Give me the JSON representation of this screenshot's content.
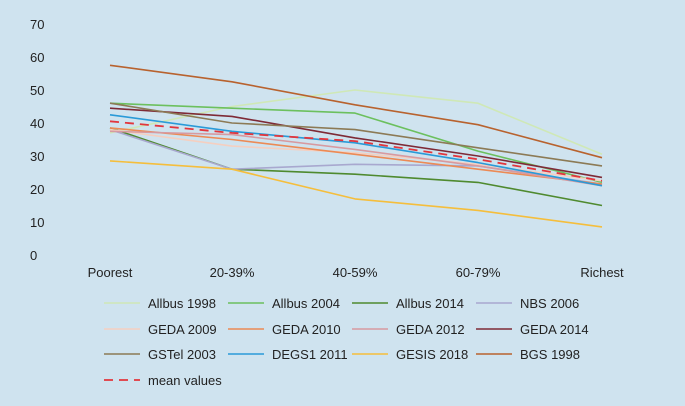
{
  "chart_data": {
    "type": "line",
    "title": "",
    "xlabel": "",
    "ylabel": "",
    "ylim": [
      0,
      70
    ],
    "yticks": [
      0,
      10,
      20,
      30,
      40,
      50,
      60,
      70
    ],
    "grid": false,
    "legend_position": "bottom",
    "categories": [
      "Poorest",
      "20-39%",
      "40-59%",
      "60-79%",
      "Richest"
    ],
    "series": [
      {
        "name": "Allbus 1998",
        "color": "#cfe8b6",
        "dash": false,
        "values": [
          37,
          45,
          50,
          46,
          30.5
        ]
      },
      {
        "name": "Allbus 2004",
        "color": "#6cc05e",
        "dash": false,
        "values": [
          46,
          44.5,
          43,
          31.5,
          22
        ]
      },
      {
        "name": "Allbus 2014",
        "color": "#4f8a2f",
        "dash": false,
        "values": [
          38.5,
          26,
          24.5,
          22,
          15
        ]
      },
      {
        "name": "NBS 2006",
        "color": "#a8a8cf",
        "dash": false,
        "values": [
          38,
          26,
          27.5,
          27,
          21.5
        ]
      },
      {
        "name": "GEDA 2009",
        "color": "#f5cfc0",
        "dash": false,
        "values": [
          38,
          33,
          31,
          27.5,
          22.5
        ]
      },
      {
        "name": "GEDA 2010",
        "color": "#ec8a55",
        "dash": false,
        "values": [
          38.5,
          35,
          30.5,
          26,
          21.5
        ]
      },
      {
        "name": "GEDA 2012",
        "color": "#d79aa0",
        "dash": false,
        "values": [
          37.5,
          36.5,
          32,
          27,
          21
        ]
      },
      {
        "name": "GEDA 2014",
        "color": "#7e2a36",
        "dash": false,
        "values": [
          44.5,
          42,
          35.5,
          30,
          23.5
        ]
      },
      {
        "name": "GSTel 2003",
        "color": "#8c7a55",
        "dash": false,
        "values": [
          46,
          40,
          38,
          32.5,
          27
        ]
      },
      {
        "name": "DEGS1 2011",
        "color": "#2a9ad8",
        "dash": false,
        "values": [
          42.5,
          37.5,
          34,
          28,
          21
        ]
      },
      {
        "name": "GESIS 2018",
        "color": "#f5be3c",
        "dash": false,
        "values": [
          28.5,
          26,
          17,
          13.5,
          8.5
        ]
      },
      {
        "name": "BGS 1998",
        "color": "#b8622e",
        "dash": false,
        "values": [
          57.5,
          52.5,
          45.5,
          39.5,
          29.5
        ]
      },
      {
        "name": "mean values",
        "color": "#e2363d",
        "dash": true,
        "values": [
          40.5,
          37,
          34.5,
          29,
          22.5
        ]
      }
    ]
  }
}
